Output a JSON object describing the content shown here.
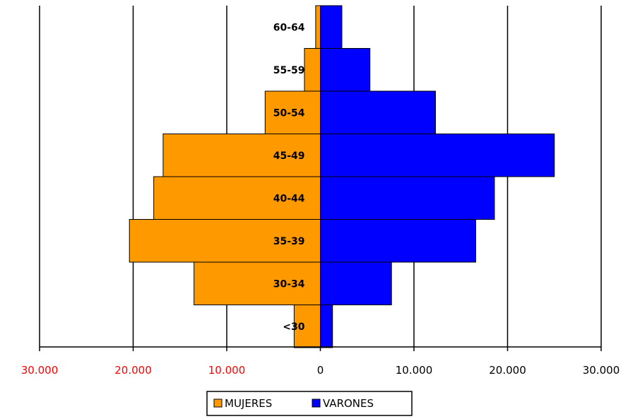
{
  "chart_data": {
    "type": "bar",
    "orientation": "horizontal",
    "layout": "population-pyramid",
    "categories": [
      "<30",
      "30-34",
      "35-39",
      "40-44",
      "45-49",
      "50-54",
      "55-59",
      "60-64"
    ],
    "series": [
      {
        "name": "MUJERES",
        "side": "left",
        "color": "#FF9900",
        "values": [
          2800,
          13500,
          20400,
          17800,
          16800,
          5900,
          1700,
          500
        ]
      },
      {
        "name": "VARONES",
        "side": "right",
        "color": "#0000FF",
        "values": [
          1300,
          7600,
          16600,
          18600,
          25000,
          12300,
          5300,
          2300
        ]
      }
    ],
    "xlim": [
      -30000,
      30000
    ],
    "x_ticks": [
      -30000,
      -20000,
      -10000,
      0,
      10000,
      20000,
      30000
    ],
    "x_tick_labels": [
      "30.000",
      "20.000",
      "10.000",
      "0",
      "10.000",
      "20.000",
      "30.000"
    ],
    "negative_tick_color": "#FF0000",
    "positive_tick_color": "#000000",
    "grid": true,
    "legend_position": "bottom"
  }
}
